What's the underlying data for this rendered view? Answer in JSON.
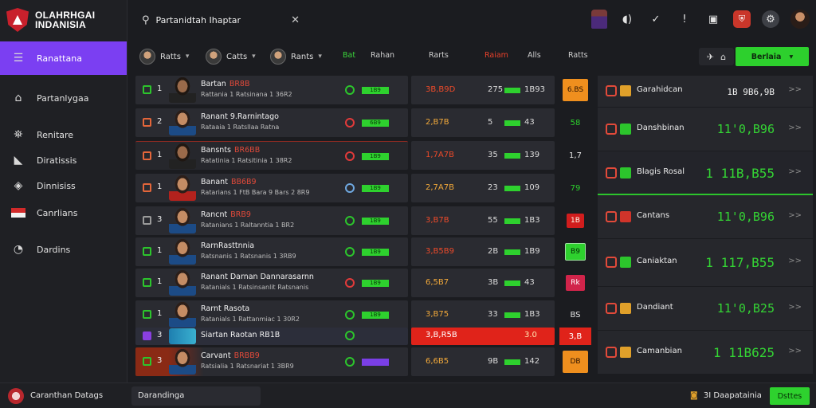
{
  "app": {
    "logo_line1": "OLAHRHGAI",
    "logo_line2": "INDANISIA"
  },
  "sidebar": {
    "items": [
      {
        "label": "Ranattana",
        "icon": "menu-icon"
      },
      {
        "label": "Partanlygaa",
        "icon": "home-icon"
      },
      {
        "label": "Renitare",
        "icon": "stadium-icon"
      },
      {
        "label": "Diratissis",
        "icon": "chart-icon"
      },
      {
        "label": "Dinnisiss",
        "icon": "tag-icon"
      },
      {
        "label": "Canrlians",
        "icon": "flag-icon"
      },
      {
        "label": "Dardins",
        "icon": "clock-icon"
      }
    ]
  },
  "search": {
    "value": "Partanidtah Ihaptar"
  },
  "filters": {
    "f1": "Ratts",
    "f2": "Catts",
    "f3": "Rants",
    "col_green": "Bat",
    "col1": "Rahan",
    "col2": "Rarts",
    "col_red": "Raiam",
    "col3": "Alls",
    "col4": "Ratts",
    "action_label": "Berlaia"
  },
  "players": [
    {
      "rank": "1",
      "name": "Bartan",
      "tag": "BR8B",
      "sub": "Rattania 1 Ratsinana 1 36R2",
      "bar": "1B9",
      "v1": "3B,B9D",
      "v2": "275",
      "v3": "1B93",
      "extra": "6.BS",
      "face": "dark",
      "chk": "green",
      "badge": "green",
      "v1style": "red",
      "sq": "orange"
    },
    {
      "rank": "2",
      "name": "Ranant 9.Rarnintago",
      "tag": "",
      "sub": "Rataaia 1 Ratsllaa Ratna",
      "bar": "6B9",
      "v1": "2,B7B",
      "v2": "5",
      "v3": "43",
      "extra": "58",
      "face": "normal",
      "chk": "orange",
      "badge": "red",
      "v1style": "",
      "sq": "darkgreen"
    },
    {
      "rank": "1",
      "name": "Bansnts",
      "tag": "BR6BB",
      "sub": "Ratatinia 1 Ratsitinia 1 38R2",
      "bar": "1B9",
      "v1": "1,7A7B",
      "v2": "35",
      "v3": "139",
      "extra": "1,7",
      "face": "dark",
      "chk": "orange",
      "badge": "red",
      "v1style": "red",
      "sq": "plain"
    },
    {
      "rank": "1",
      "name": "Banant",
      "tag": "BB6B9",
      "sub": "Ratarians 1 FtB Bara 9 Bars 2 8R9",
      "bar": "1B9",
      "v1": "2,7A7B",
      "v2": "23",
      "v3": "109",
      "extra": "79",
      "face": "red",
      "chk": "orange",
      "badge": "blue",
      "v1style": "",
      "sq": "darkgreen"
    },
    {
      "rank": "3",
      "name": "Rancnt",
      "tag": "BRB9",
      "sub": "Ratanians 1 Raltanntia 1 BR2",
      "bar": "1B9",
      "v1": "3,B7B",
      "v2": "55",
      "v3": "1B3",
      "extra": "1B",
      "face": "normal",
      "chk": "gray",
      "badge": "green",
      "v1style": "red",
      "sq": "red"
    },
    {
      "rank": "1",
      "name": "RarnRasttnnia",
      "tag": "",
      "sub": "Ratsnanis 1 Ratsnanis 1 3RB9",
      "bar": "1B9",
      "v1": "3,B5B9",
      "v2": "2B",
      "v3": "1B9",
      "extra": "B9",
      "face": "normal",
      "chk": "green",
      "badge": "green",
      "v1style": "red",
      "sq": "green"
    },
    {
      "rank": "1",
      "name": "Ranant Darnan Dannarasarnn",
      "tag": "",
      "sub": "Ratanials 1 Ratsinsanlit Ratsnanis",
      "bar": "1B9",
      "v1": "6,5B7",
      "v2": "3B",
      "v3": "43",
      "extra": "Rk",
      "face": "normal",
      "chk": "green",
      "badge": "red",
      "v1style": "",
      "sq": "pink"
    },
    {
      "rank": "1",
      "name": "Rarnt Rasota",
      "tag": "",
      "sub": "Ratanials 1 Rattanmiac 1 30R2",
      "bar": "1B9",
      "v1": "3,B75",
      "v2": "33",
      "v3": "1B3",
      "extra": "BS",
      "face": "normal",
      "chk": "green",
      "badge": "green",
      "v1style": "",
      "sq": "plain"
    },
    {
      "rank": "3",
      "name": "Siartan Raotan RB1B",
      "tag": "",
      "sub": "",
      "bar": "",
      "v1": "3,B,R5B",
      "v2": "",
      "v3": "3.0",
      "extra": "3,B",
      "face": "small",
      "chk": "purple",
      "badge": "green",
      "v1style": "light",
      "sq": "plain"
    },
    {
      "rank": "3",
      "name": "Carvant",
      "tag": "BRBB9",
      "sub": "Ratsialia 1 Ratsnariat 1 3BR9",
      "bar": "",
      "v1": "6,6B5",
      "v2": "9B",
      "v3": "142",
      "extra": "DB",
      "face": "normal",
      "chk": "green",
      "badge": "green",
      "v1style": "",
      "sq": "orange"
    }
  ],
  "teams": [
    {
      "name": "Garahidcan",
      "score": "1B 9B6,9B",
      "flag2": "orange",
      "style": "plain"
    },
    {
      "name": "Danshbinan",
      "score": "11'0,B96",
      "flag2": "green",
      "style": "green"
    },
    {
      "name": "Blagis Rosal",
      "score": "1 11B,B55",
      "flag2": "green",
      "style": "greenbig"
    },
    {
      "name": "Cantans",
      "score": "11'0,B96",
      "flag2": "red",
      "style": "green"
    },
    {
      "name": "Caniaktan",
      "score": "1 117,B55",
      "flag2": "green",
      "style": "greenbig"
    },
    {
      "name": "Dandiant",
      "score": "11'0,B25",
      "flag2": "orange",
      "style": "green"
    },
    {
      "name": "Camanbian",
      "score": "1 11B625",
      "flag2": "orange",
      "style": "greenbig"
    }
  ],
  "bottom": {
    "user": "Caranthan Datags",
    "input_value": "Darandinga",
    "status_count": "3I",
    "status_text": "Daapatainia",
    "button": "Dsttes"
  },
  "colors": {
    "accent": "#7b3ff2",
    "green": "#2ed12e",
    "red": "#e0231a",
    "orange": "#ef8f1e"
  }
}
